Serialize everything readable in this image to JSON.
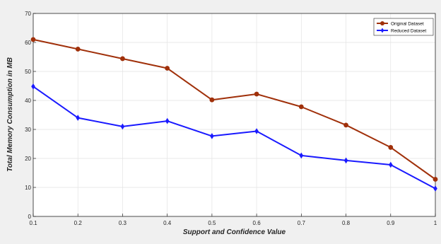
{
  "chart_data": {
    "type": "line",
    "xlabel": "Support and Confidence Value",
    "ylabel": "Total Memory Consumption in MB",
    "x": [
      0.1,
      0.2,
      0.3,
      0.4,
      0.5,
      0.6,
      0.7,
      0.8,
      0.9,
      1
    ],
    "xlim": [
      0.1,
      1
    ],
    "ylim": [
      0,
      70
    ],
    "xticks": [
      "0.1",
      "0.2",
      "0.3",
      "0.4",
      "0.5",
      "0.6",
      "0.7",
      "0.8",
      "0.9",
      "1"
    ],
    "yticks": [
      "0",
      "10",
      "20",
      "30",
      "40",
      "50",
      "60",
      "70"
    ],
    "grid": true,
    "legend_position": "top-right",
    "series": [
      {
        "name": "Original Dataset",
        "color": "#a0300a",
        "marker": "circle",
        "values": [
          61,
          57.7,
          54.4,
          51.1,
          40.2,
          42.2,
          37.8,
          31.5,
          23.8,
          12.8
        ]
      },
      {
        "name": "Reduced Dataset",
        "color": "#1a1aff",
        "marker": "diamond",
        "values": [
          44.8,
          34,
          31,
          32.9,
          27.7,
          29.4,
          21,
          19.3,
          17.8,
          9.6
        ]
      }
    ]
  }
}
